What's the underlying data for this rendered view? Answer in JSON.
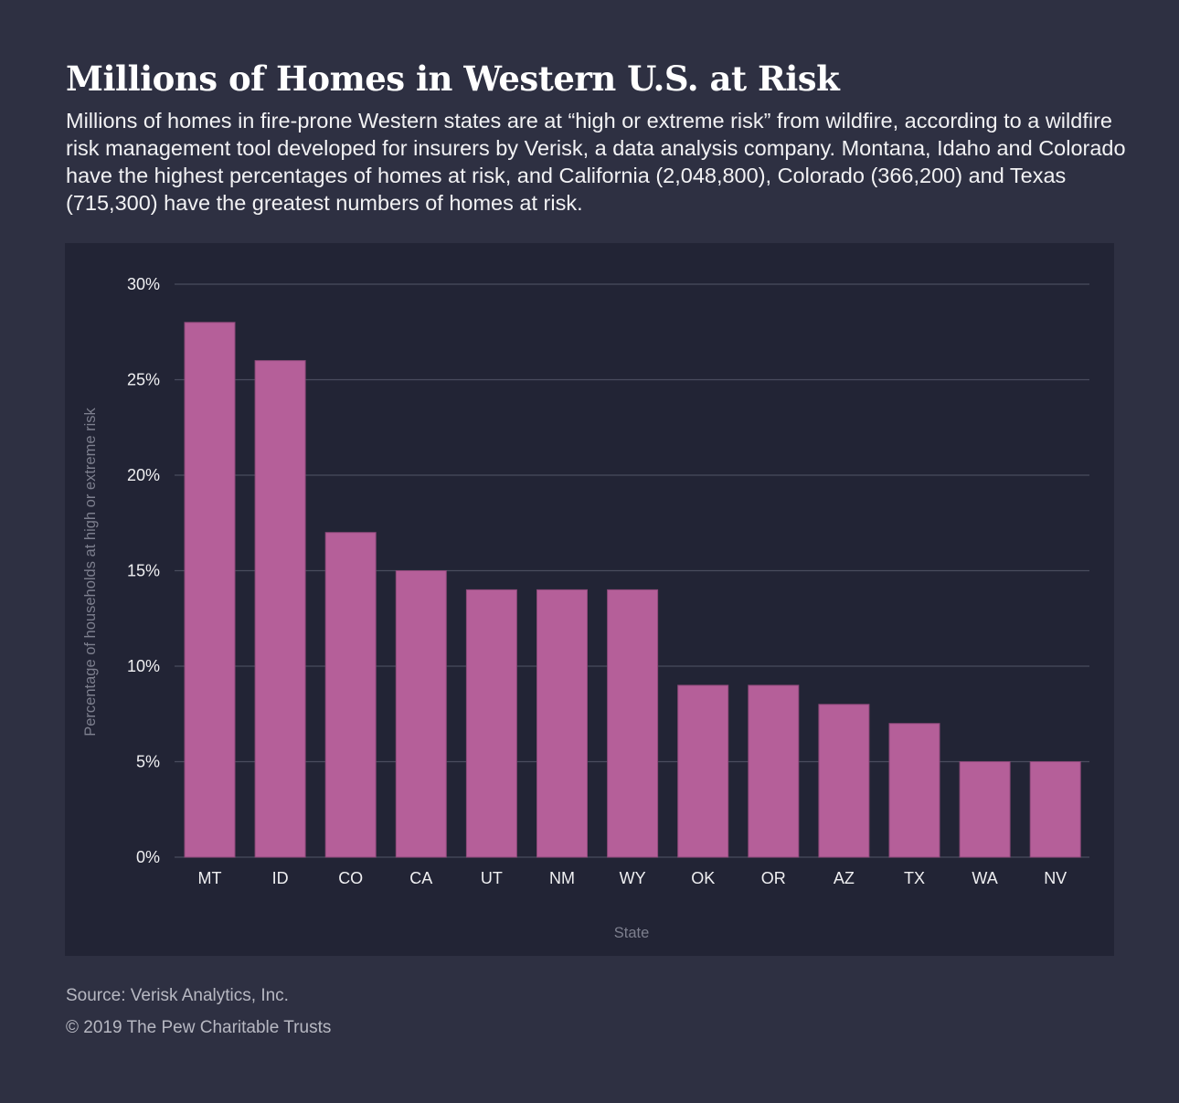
{
  "header": {
    "title": "Millions of Homes in Western U.S. at Risk",
    "subtitle": "Millions of homes in fire-prone Western states are at “high or extreme risk” from wildfire, according to a wildfire risk management tool developed for insurers by Verisk, a data analysis company. Montana, Idaho and Colorado have the highest percentages of homes at risk, and California (2,048,800), Colorado (366,200) and Texas (715,300) have the greatest numbers of homes at risk."
  },
  "chart_data": {
    "type": "bar",
    "title": "Millions of Homes in Western U.S. at Risk",
    "xlabel": "State",
    "ylabel": "Percentage of households at high or extreme risk",
    "categories": [
      "MT",
      "ID",
      "CO",
      "CA",
      "UT",
      "NM",
      "WY",
      "OK",
      "OR",
      "AZ",
      "TX",
      "WA",
      "NV"
    ],
    "values": [
      28,
      26,
      17,
      15,
      14,
      14,
      14,
      9,
      9,
      8,
      7,
      5,
      5
    ],
    "ylim": [
      0,
      30
    ],
    "yticks": [
      0,
      5,
      10,
      15,
      20,
      25,
      30
    ],
    "ytick_labels": [
      "0%",
      "5%",
      "10%",
      "15%",
      "20%",
      "25%",
      "30%"
    ],
    "grid": true,
    "legend": "none",
    "bar_color": "#b55f99"
  },
  "footer": {
    "source": "Source: Verisk Analytics, Inc.",
    "copyright": "© 2019 The Pew Charitable Trusts"
  },
  "colors": {
    "background": "#2e3042",
    "panel": "#222435",
    "bar": "#b55f99",
    "gridline": "#4a4c5e"
  }
}
